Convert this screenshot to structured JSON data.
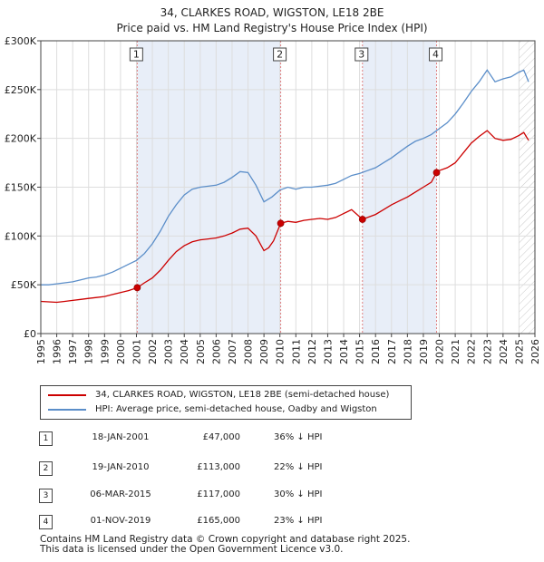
{
  "title_line1": "34, CLARKES ROAD, WIGSTON, LE18 2BE",
  "title_line2": "Price paid vs. HM Land Registry's House Price Index (HPI)",
  "chart_data": {
    "type": "line",
    "title": "34, CLARKES ROAD, WIGSTON, LE18 2BE — Price paid vs. HM Land Registry's House Price Index (HPI)",
    "xlim": [
      1995,
      2026
    ],
    "ylim": [
      0,
      300000
    ],
    "x_ticks": [
      "1995",
      "1996",
      "1997",
      "1998",
      "1999",
      "2000",
      "2001",
      "2002",
      "2003",
      "2004",
      "2005",
      "2006",
      "2007",
      "2008",
      "2009",
      "2010",
      "2011",
      "2012",
      "2013",
      "2014",
      "2015",
      "2016",
      "2017",
      "2018",
      "2019",
      "2020",
      "2021",
      "2022",
      "2023",
      "2024",
      "2025",
      "2026"
    ],
    "y_ticks": [
      {
        "value": 0,
        "label": "£0"
      },
      {
        "value": 50000,
        "label": "£50K"
      },
      {
        "value": 100000,
        "label": "£100K"
      },
      {
        "value": 150000,
        "label": "£150K"
      },
      {
        "value": 200000,
        "label": "£200K"
      },
      {
        "value": 250000,
        "label": "£250K"
      },
      {
        "value": 300000,
        "label": "£300K"
      }
    ],
    "series": [
      {
        "name": "34, CLARKES ROAD, WIGSTON, LE18 2BE (semi-detached house)",
        "color": "#cc0000",
        "x": [
          1995.0,
          1995.5,
          1996.0,
          1996.5,
          1997.0,
          1997.5,
          1998.0,
          1998.5,
          1999.0,
          1999.5,
          2000.0,
          2000.5,
          2001.05,
          2001.5,
          2002.0,
          2002.5,
          2003.0,
          2003.5,
          2004.0,
          2004.5,
          2005.0,
          2005.5,
          2006.0,
          2006.5,
          2007.0,
          2007.5,
          2008.0,
          2008.5,
          2009.0,
          2009.3,
          2009.6,
          2010.05,
          2010.5,
          2011.0,
          2011.5,
          2012.0,
          2012.5,
          2013.0,
          2013.5,
          2014.0,
          2014.5,
          2015.18,
          2015.5,
          2016.0,
          2016.5,
          2017.0,
          2017.5,
          2018.0,
          2018.5,
          2019.0,
          2019.5,
          2019.83,
          2020.0,
          2020.5,
          2021.0,
          2021.5,
          2022.0,
          2022.5,
          2023.0,
          2023.5,
          2024.0,
          2024.5,
          2025.0,
          2025.3,
          2025.6
        ],
        "values": [
          33000,
          32500,
          32000,
          33000,
          34000,
          35000,
          36000,
          37000,
          38000,
          40000,
          42000,
          44000,
          47000,
          52000,
          57000,
          65000,
          75000,
          84000,
          90000,
          94000,
          96000,
          97000,
          98000,
          100000,
          103000,
          107000,
          108000,
          100000,
          85000,
          88000,
          95000,
          113000,
          115000,
          114000,
          116000,
          117000,
          118000,
          117000,
          119000,
          123000,
          127000,
          117000,
          119000,
          122000,
          127000,
          132000,
          136000,
          140000,
          145000,
          150000,
          155000,
          165000,
          167000,
          170000,
          175000,
          185000,
          195000,
          202000,
          208000,
          200000,
          198000,
          199000,
          203000,
          206000,
          198000
        ]
      },
      {
        "name": "HPI: Average price, semi-detached house, Oadby and Wigston",
        "color": "#5b8ec9",
        "x": [
          1995.0,
          1995.5,
          1996.0,
          1996.5,
          1997.0,
          1997.5,
          1998.0,
          1998.5,
          1999.0,
          1999.5,
          2000.0,
          2000.5,
          2001.0,
          2001.5,
          2002.0,
          2002.5,
          2003.0,
          2003.5,
          2004.0,
          2004.5,
          2005.0,
          2005.5,
          2006.0,
          2006.5,
          2007.0,
          2007.5,
          2008.0,
          2008.5,
          2009.0,
          2009.5,
          2010.0,
          2010.5,
          2011.0,
          2011.5,
          2012.0,
          2012.5,
          2013.0,
          2013.5,
          2014.0,
          2014.5,
          2015.0,
          2015.5,
          2016.0,
          2016.5,
          2017.0,
          2017.5,
          2018.0,
          2018.5,
          2019.0,
          2019.5,
          2020.0,
          2020.5,
          2021.0,
          2021.5,
          2022.0,
          2022.5,
          2023.0,
          2023.5,
          2024.0,
          2024.5,
          2025.0,
          2025.3,
          2025.6
        ],
        "values": [
          50000,
          50000,
          51000,
          52000,
          53000,
          55000,
          57000,
          58000,
          60000,
          63000,
          67000,
          71000,
          75000,
          82000,
          92000,
          105000,
          120000,
          132000,
          142000,
          148000,
          150000,
          151000,
          152000,
          155000,
          160000,
          166000,
          165000,
          152000,
          135000,
          140000,
          147000,
          150000,
          148000,
          150000,
          150000,
          151000,
          152000,
          154000,
          158000,
          162000,
          164000,
          167000,
          170000,
          175000,
          180000,
          186000,
          192000,
          197000,
          200000,
          204000,
          210000,
          216000,
          225000,
          236000,
          248000,
          258000,
          270000,
          258000,
          261000,
          263000,
          268000,
          270000,
          258000
        ]
      }
    ],
    "transactions": [
      {
        "num": "1",
        "x": 2001.05,
        "price_value": 47000,
        "date": "18-JAN-2001",
        "price": "£47,000",
        "diff": "36% ↓ HPI"
      },
      {
        "num": "2",
        "x": 2010.05,
        "price_value": 113000,
        "date": "19-JAN-2010",
        "price": "£113,000",
        "diff": "22% ↓ HPI"
      },
      {
        "num": "3",
        "x": 2015.18,
        "price_value": 117000,
        "date": "06-MAR-2015",
        "price": "£117,000",
        "diff": "30% ↓ HPI"
      },
      {
        "num": "4",
        "x": 2019.83,
        "price_value": 165000,
        "date": "01-NOV-2019",
        "price": "£165,000",
        "diff": "23% ↓ HPI"
      }
    ],
    "shaded_spans": [
      [
        2001.05,
        2010.05
      ],
      [
        2015.18,
        2019.83
      ]
    ],
    "shaded_end_start": 2025.0
  },
  "footer_line1": "Contains HM Land Registry data © Crown copyright and database right 2025.",
  "footer_line2": "This data is licensed under the Open Government Licence v3.0."
}
